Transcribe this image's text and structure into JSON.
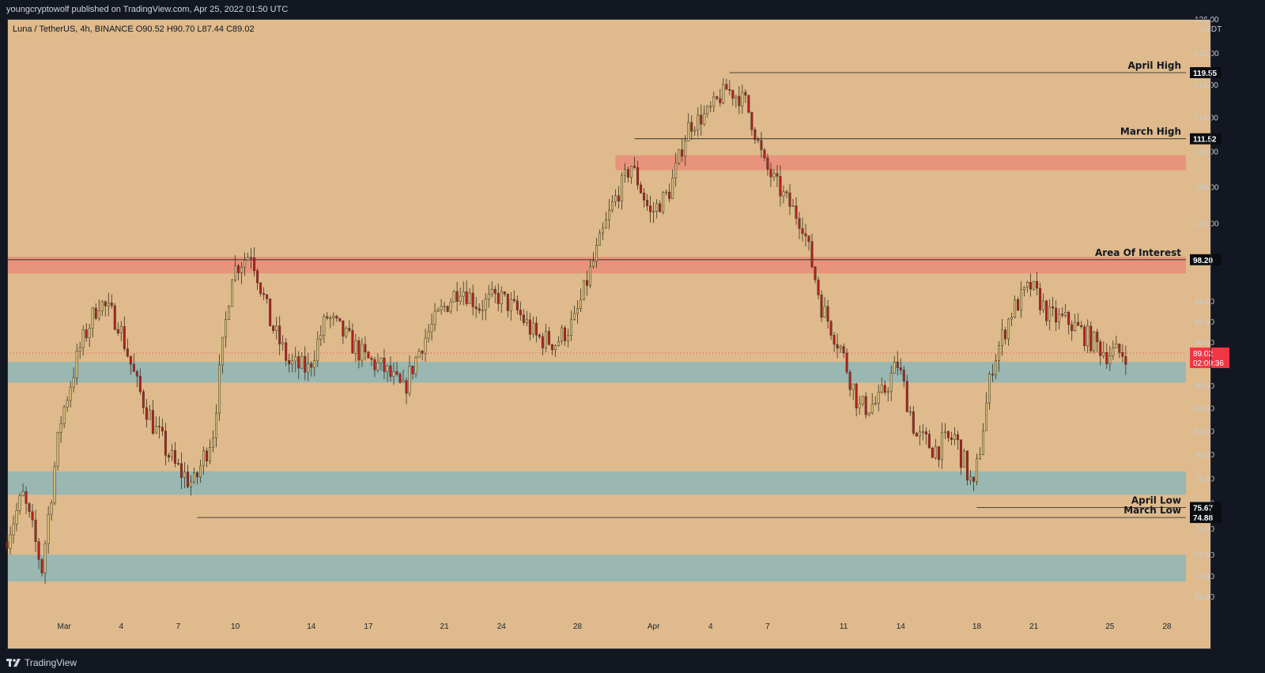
{
  "header": {
    "publisher": "youngcryptowolf published on TradingView.com, Apr 25, 2022 01:50 UTC"
  },
  "legend": {
    "symbol": "Luna / TetherUS, 4h, BINANCE",
    "ohlc": "O90.52 H90.70 L87.44 C89.02"
  },
  "footer": {
    "brand": "TradingView"
  },
  "colors": {
    "background": "#deba8c",
    "up": "#d9c27e",
    "down": "#b51f1f",
    "resistance_zone": "#e8907a",
    "support_zone": "#96b6b4",
    "last_price": "#f23645"
  },
  "chart_data": {
    "type": "candlestick",
    "symbol": "Luna / TetherUS",
    "timeframe": "4h",
    "exchange": "BINANCE",
    "currency": "USDT",
    "last_bar": {
      "open": 90.52,
      "high": 90.7,
      "low": 87.44,
      "close": 89.02
    },
    "y_axis": {
      "scale": "log",
      "range": [
        67.5,
        126.5
      ],
      "ticks": [
        "122.00",
        "118.00",
        "114.00",
        "110.00",
        "106.00",
        "102.00",
        "98.00",
        "94.00",
        "92.00",
        "90.00",
        "86.00",
        "84.00",
        "82.00",
        "80.00",
        "78.00",
        "76.00",
        "74.00",
        "72.00",
        "70.40",
        "68.90"
      ],
      "currency_label": "USDT",
      "top_partial_tick": "126.00"
    },
    "x_axis": {
      "range": [
        "2022-02-26",
        "2022-04-29"
      ],
      "ticks": [
        {
          "label": "Mar",
          "date": "2022-03-01"
        },
        {
          "label": "4",
          "date": "2022-03-04"
        },
        {
          "label": "7",
          "date": "2022-03-07"
        },
        {
          "label": "10",
          "date": "2022-03-10"
        },
        {
          "label": "14",
          "date": "2022-03-14"
        },
        {
          "label": "17",
          "date": "2022-03-17"
        },
        {
          "label": "21",
          "date": "2022-03-21"
        },
        {
          "label": "24",
          "date": "2022-03-24"
        },
        {
          "label": "28",
          "date": "2022-03-28"
        },
        {
          "label": "Apr",
          "date": "2022-04-01"
        },
        {
          "label": "4",
          "date": "2022-04-04"
        },
        {
          "label": "7",
          "date": "2022-04-07"
        },
        {
          "label": "11",
          "date": "2022-04-11"
        },
        {
          "label": "14",
          "date": "2022-04-14"
        },
        {
          "label": "18",
          "date": "2022-04-18"
        },
        {
          "label": "21",
          "date": "2022-04-21"
        },
        {
          "label": "25",
          "date": "2022-04-25"
        },
        {
          "label": "28",
          "date": "2022-04-28"
        }
      ]
    },
    "price_path": [
      {
        "date": "2022-02-26",
        "price": 73.0
      },
      {
        "date": "2022-02-27",
        "price": 76.5
      },
      {
        "date": "2022-02-28",
        "price": 71.0
      },
      {
        "date": "2022-03-01",
        "price": 83.0
      },
      {
        "date": "2022-03-02",
        "price": 89.5
      },
      {
        "date": "2022-03-03",
        "price": 94.0
      },
      {
        "date": "2022-03-04",
        "price": 92.0
      },
      {
        "date": "2022-03-05",
        "price": 86.0
      },
      {
        "date": "2022-03-06",
        "price": 82.0
      },
      {
        "date": "2022-03-07",
        "price": 79.0
      },
      {
        "date": "2022-03-08",
        "price": 77.5
      },
      {
        "date": "2022-03-09",
        "price": 82.0
      },
      {
        "date": "2022-03-10",
        "price": 97.0
      },
      {
        "date": "2022-03-11",
        "price": 99.0
      },
      {
        "date": "2022-03-12",
        "price": 92.0
      },
      {
        "date": "2022-03-13",
        "price": 88.0
      },
      {
        "date": "2022-03-14",
        "price": 87.5
      },
      {
        "date": "2022-03-15",
        "price": 92.5
      },
      {
        "date": "2022-03-16",
        "price": 90.5
      },
      {
        "date": "2022-03-17",
        "price": 88.5
      },
      {
        "date": "2022-03-18",
        "price": 87.5
      },
      {
        "date": "2022-03-19",
        "price": 85.5
      },
      {
        "date": "2022-03-20",
        "price": 90.0
      },
      {
        "date": "2022-03-21",
        "price": 93.0
      },
      {
        "date": "2022-03-22",
        "price": 95.5
      },
      {
        "date": "2022-03-23",
        "price": 93.5
      },
      {
        "date": "2022-03-24",
        "price": 94.5
      },
      {
        "date": "2022-03-25",
        "price": 93.0
      },
      {
        "date": "2022-03-26",
        "price": 90.5
      },
      {
        "date": "2022-03-27",
        "price": 90.0
      },
      {
        "date": "2022-03-28",
        "price": 92.0
      },
      {
        "date": "2022-03-29",
        "price": 98.0
      },
      {
        "date": "2022-03-30",
        "price": 104.0
      },
      {
        "date": "2022-03-31",
        "price": 108.5
      },
      {
        "date": "2022-04-01",
        "price": 103.0
      },
      {
        "date": "2022-04-02",
        "price": 105.5
      },
      {
        "date": "2022-04-03",
        "price": 113.0
      },
      {
        "date": "2022-04-04",
        "price": 114.5
      },
      {
        "date": "2022-04-05",
        "price": 117.5
      },
      {
        "date": "2022-04-06",
        "price": 116.0
      },
      {
        "date": "2022-04-07",
        "price": 108.5
      },
      {
        "date": "2022-04-08",
        "price": 105.0
      },
      {
        "date": "2022-04-09",
        "price": 102.0
      },
      {
        "date": "2022-04-10",
        "price": 93.5
      },
      {
        "date": "2022-04-11",
        "price": 89.5
      },
      {
        "date": "2022-04-12",
        "price": 84.0
      },
      {
        "date": "2022-04-13",
        "price": 84.5
      },
      {
        "date": "2022-04-14",
        "price": 88.0
      },
      {
        "date": "2022-04-15",
        "price": 81.5
      },
      {
        "date": "2022-04-16",
        "price": 80.5
      },
      {
        "date": "2022-04-17",
        "price": 81.5
      },
      {
        "date": "2022-04-18",
        "price": 77.0
      },
      {
        "date": "2022-04-19",
        "price": 88.0
      },
      {
        "date": "2022-04-20",
        "price": 93.0
      },
      {
        "date": "2022-04-21",
        "price": 95.5
      },
      {
        "date": "2022-04-22",
        "price": 92.5
      },
      {
        "date": "2022-04-23",
        "price": 92.0
      },
      {
        "date": "2022-04-24",
        "price": 90.5
      },
      {
        "date": "2022-04-25",
        "price": 89.02
      }
    ],
    "horizontal_lines": [
      {
        "label": "April High",
        "price": 119.55,
        "start": "2022-04-05"
      },
      {
        "label": "March High",
        "price": 111.52,
        "start": "2022-03-31"
      },
      {
        "label": "Area Of Interest",
        "price": 98.2,
        "start": "2022-02-26"
      },
      {
        "label": "April Low",
        "price": 75.67,
        "start": "2022-04-18"
      },
      {
        "label": "March Low",
        "price": 74.88,
        "start": "2022-03-08"
      }
    ],
    "price_tags": [
      {
        "text": "119.55",
        "price": 119.55
      },
      {
        "text": "111.52",
        "price": 111.52
      },
      {
        "text": "98.20",
        "price": 98.2
      },
      {
        "text": "75.67",
        "price": 75.67
      },
      {
        "text": "74.88",
        "price": 74.88
      }
    ],
    "last_price_tag": {
      "price": "89.02",
      "countdown": "02:09:36"
    },
    "zones": [
      {
        "type": "resistance",
        "from": 107.9,
        "to": 109.6,
        "start": "2022-03-30"
      },
      {
        "type": "resistance",
        "from": 96.8,
        "to": 98.5,
        "start": "2022-02-26"
      },
      {
        "type": "support",
        "from": 86.3,
        "to": 88.2,
        "start": "2022-02-26"
      },
      {
        "type": "support",
        "from": 76.7,
        "to": 78.6,
        "start": "2022-02-26"
      },
      {
        "type": "support",
        "from": 70.0,
        "to": 72.0,
        "start": "2022-02-26"
      }
    ]
  }
}
